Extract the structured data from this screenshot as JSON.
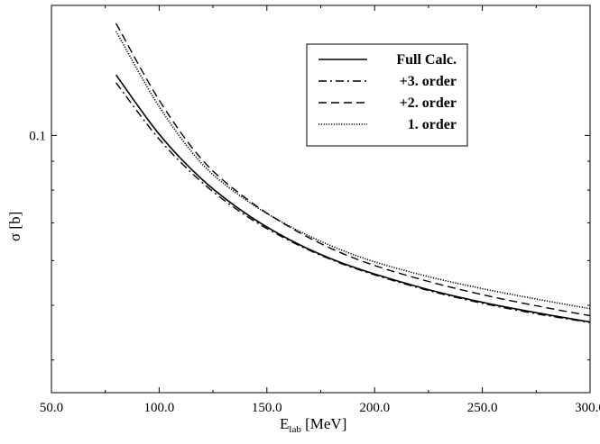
{
  "chart_data": {
    "type": "line",
    "xlabel_main": "E",
    "xlabel_sub": "lab",
    "xlabel_unit": " [MeV]",
    "ylabel": "σ [b]",
    "xlim": [
      50,
      300
    ],
    "ylim": [
      0.035,
      0.17
    ],
    "yscale": "log",
    "x_ticks": [
      "50.0",
      "100.0",
      "150.0",
      "200.0",
      "250.0",
      "300.0"
    ],
    "x_tick_values": [
      50,
      100,
      150,
      200,
      250,
      300
    ],
    "y_ticks": [
      "0.1"
    ],
    "y_tick_values": [
      0.1
    ],
    "legend_position": "top-right",
    "x": [
      80,
      100,
      120,
      140,
      160,
      180,
      200,
      225,
      250,
      275,
      300
    ],
    "series": [
      {
        "name": "Full Calc.",
        "style": "solid",
        "values": [
          0.128,
          0.1005,
          0.0835,
          0.0728,
          0.0655,
          0.0604,
          0.0568,
          0.0533,
          0.0506,
          0.0485,
          0.0467
        ]
      },
      {
        "name": "+3. order",
        "style": "dashdot",
        "values": [
          0.124,
          0.0985,
          0.0825,
          0.0722,
          0.0652,
          0.0602,
          0.0566,
          0.0531,
          0.0504,
          0.0483,
          0.0466
        ]
      },
      {
        "name": "+2. order",
        "style": "dashed",
        "values": [
          0.158,
          0.1155,
          0.0905,
          0.0775,
          0.069,
          0.063,
          0.0588,
          0.0551,
          0.0522,
          0.0499,
          0.0479
        ]
      },
      {
        "name": "1. order",
        "style": "dotted",
        "values": [
          0.153,
          0.1125,
          0.089,
          0.077,
          0.0692,
          0.0637,
          0.0597,
          0.0562,
          0.0535,
          0.0513,
          0.0493
        ]
      }
    ]
  }
}
